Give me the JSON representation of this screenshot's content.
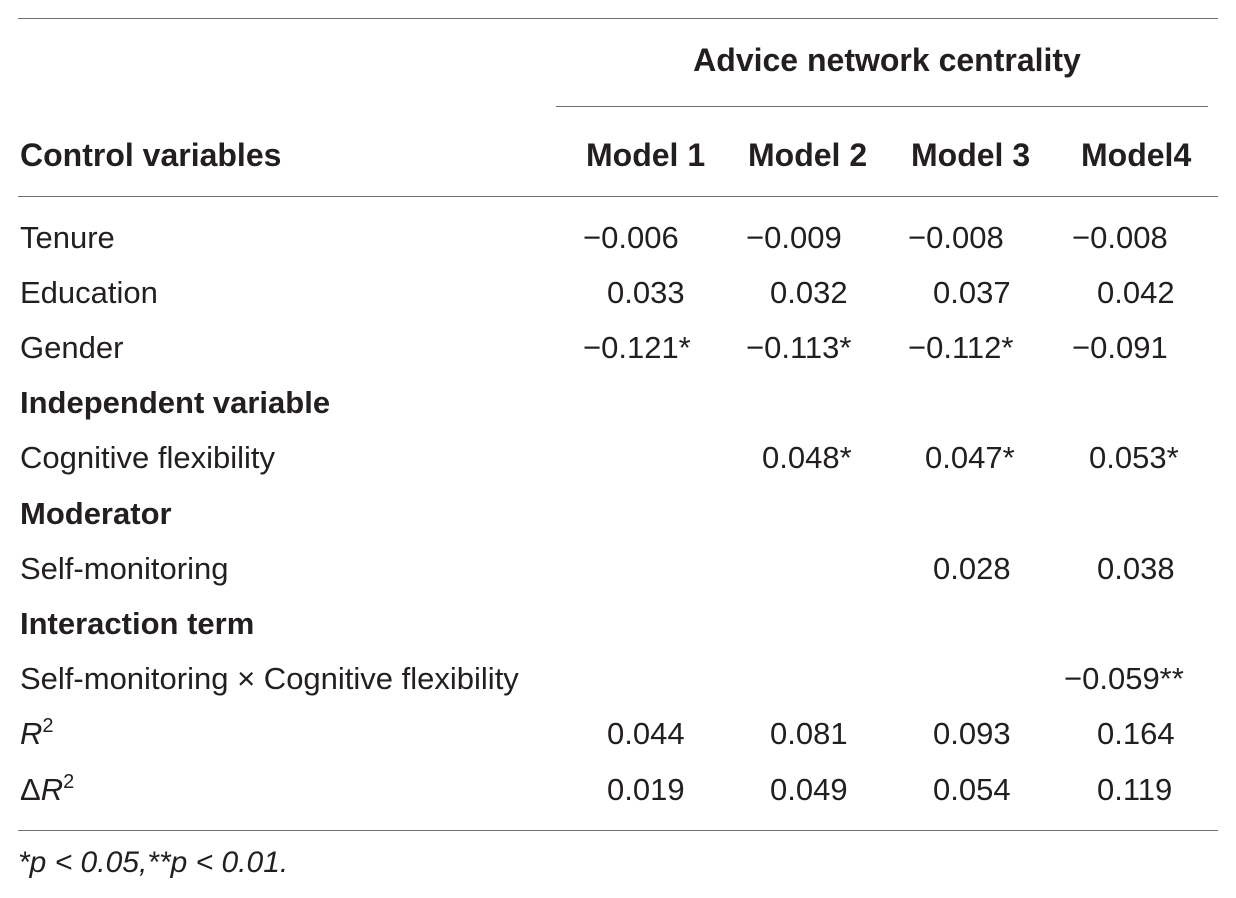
{
  "table": {
    "group_header": "Advice network centrality",
    "first_column_header": "Control variables",
    "model_headers": [
      "Model 1",
      "Model 2",
      "Model 3",
      "Model4"
    ],
    "rows": {
      "tenure": {
        "label": "Tenure",
        "m1": "−0.006",
        "m2": "−0.009",
        "m3": "−0.008",
        "m4": "−0.008"
      },
      "education": {
        "label": "Education",
        "m1": "0.033",
        "m2": "0.032",
        "m3": "0.037",
        "m4": "0.042"
      },
      "gender": {
        "label": "Gender",
        "m1": "−0.121*",
        "m2": "−0.113*",
        "m3": "−0.112*",
        "m4": "−0.091"
      },
      "independent_section": {
        "label": "Independent variable"
      },
      "cognitive_flexibility": {
        "label": "Cognitive flexibility",
        "m2": "0.048*",
        "m3": "0.047*",
        "m4": "0.053*"
      },
      "moderator_section": {
        "label": "Moderator"
      },
      "self_monitoring": {
        "label": "Self-monitoring",
        "m3": "0.028",
        "m4": "0.038"
      },
      "interaction_section": {
        "label": "Interaction term"
      },
      "interaction": {
        "label": "Self-monitoring × Cognitive flexibility",
        "m4": "−0.059**"
      },
      "r2": {
        "label": "R",
        "label_sup": "2",
        "m1": "0.044",
        "m2": "0.081",
        "m3": "0.093",
        "m4": "0.164"
      },
      "delta_r2": {
        "label_prefix": "Δ",
        "label": "R",
        "label_sup": "2",
        "m1": "0.019",
        "m2": "0.049",
        "m3": "0.054",
        "m4": "0.119"
      }
    },
    "footnote": "*p < 0.05,**p < 0.01."
  }
}
